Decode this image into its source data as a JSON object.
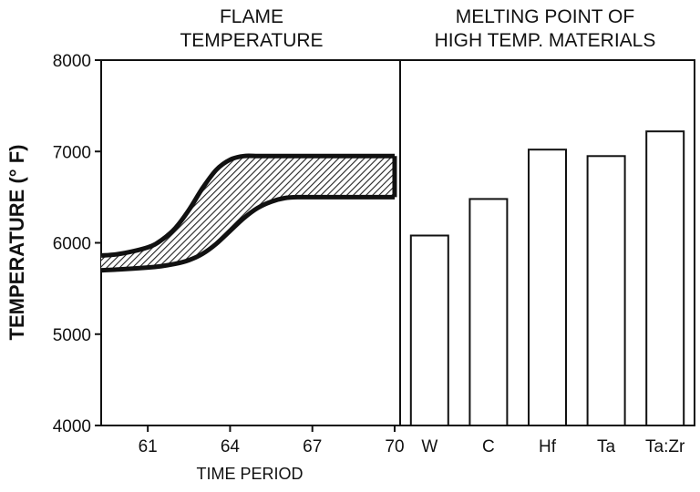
{
  "chart_data": [
    {
      "type": "area",
      "title_lines": [
        "FLAME",
        "TEMPERATURE"
      ],
      "xlabel": "TIME PERIOD",
      "ylabel": "TEMPERATURE (° F)",
      "xlim": [
        59.3,
        70.2
      ],
      "ylim": [
        4000,
        8000
      ],
      "x_ticks": [
        61,
        64,
        67,
        70
      ],
      "y_ticks": [
        4000,
        5000,
        6000,
        7000,
        8000
      ],
      "band": {
        "x": [
          59.3,
          60,
          61,
          61.5,
          62,
          62.5,
          63,
          63.5,
          64,
          64.5,
          65,
          65.5,
          66,
          66.5,
          67,
          68,
          69,
          70
        ],
        "upper": [
          5860,
          5880,
          5950,
          6030,
          6160,
          6360,
          6600,
          6800,
          6910,
          6950,
          6950,
          6950,
          6950,
          6950,
          6950,
          6950,
          6950,
          6950
        ],
        "lower": [
          5700,
          5710,
          5730,
          5745,
          5770,
          5810,
          5880,
          5990,
          6130,
          6270,
          6380,
          6450,
          6490,
          6500,
          6500,
          6500,
          6500,
          6500
        ]
      },
      "fill": "hatched"
    },
    {
      "type": "bar",
      "title_lines": [
        "MELTING POINT OF",
        "HIGH TEMP. MATERIALS"
      ],
      "categories": [
        "W",
        "C",
        "Hf",
        "Ta",
        "Ta:Zr"
      ],
      "values": [
        6080,
        6480,
        7020,
        6950,
        7220
      ],
      "ylim": [
        4000,
        8000
      ]
    }
  ]
}
